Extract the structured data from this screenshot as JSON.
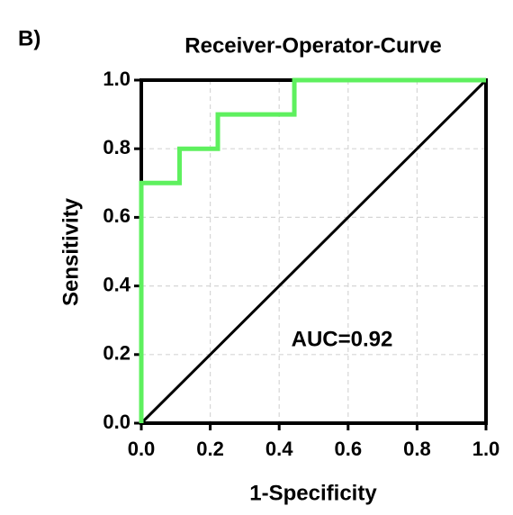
{
  "panel_label": "B)",
  "chart_data": {
    "type": "line",
    "title": "Receiver-Operator-Curve",
    "x_label": "1-Specificity",
    "y_label": "Sensitivity",
    "annotation": "AUC=0.92",
    "series": [
      {
        "color": "#5ef05e",
        "x": [
          0,
          0,
          0.111,
          0.111,
          0.222,
          0.222,
          0.444,
          0.444,
          1
        ],
        "values": [
          0,
          0.7,
          0.7,
          0.8,
          0.8,
          0.9,
          0.9,
          1,
          1
        ]
      },
      {
        "color": "#000000",
        "x": [
          0,
          1
        ],
        "values": [
          0,
          1
        ]
      }
    ],
    "xlim": [
      0,
      1
    ],
    "ylim": [
      0,
      1
    ],
    "xticks": [
      {
        "value": 0,
        "label": "0.0"
      },
      0.2,
      0.4,
      0.6,
      0.8,
      {
        "value": 1,
        "label": "1.0"
      }
    ],
    "yticks": [
      {
        "value": 0,
        "label": "0.0"
      },
      0.2,
      0.4,
      0.6,
      0.8,
      {
        "value": 1,
        "label": "1.0"
      }
    ],
    "grid": true
  }
}
